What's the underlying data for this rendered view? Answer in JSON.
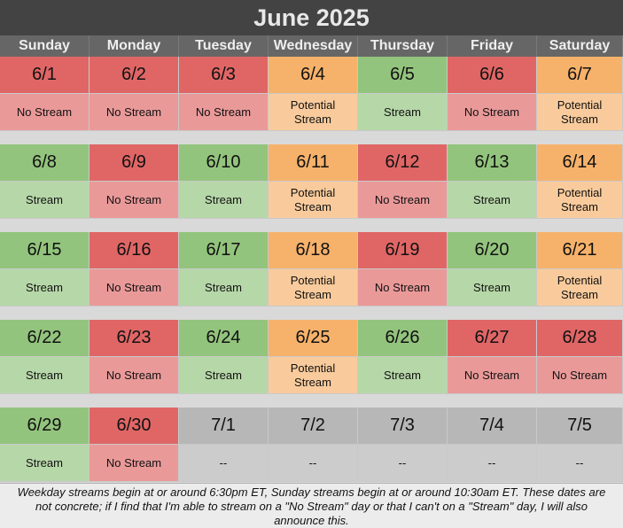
{
  "title": "June 2025",
  "days": [
    "Sunday",
    "Monday",
    "Tuesday",
    "Wednesday",
    "Thursday",
    "Friday",
    "Saturday"
  ],
  "colors": {
    "red_date": "#e06666",
    "red_status": "#ea9999",
    "orange_date": "#f6b26b",
    "orange_status": "#f9cb9c",
    "green_date": "#93c47d",
    "green_status": "#b6d7a8",
    "gray_date": "#b7b7b7",
    "gray_status": "#cccccc"
  },
  "weeks": [
    [
      {
        "date": "6/1",
        "status": "No Stream",
        "kind": "red"
      },
      {
        "date": "6/2",
        "status": "No Stream",
        "kind": "red"
      },
      {
        "date": "6/3",
        "status": "No Stream",
        "kind": "red"
      },
      {
        "date": "6/4",
        "status": "Potential\nStream",
        "kind": "orange"
      },
      {
        "date": "6/5",
        "status": "Stream",
        "kind": "green"
      },
      {
        "date": "6/6",
        "status": "No Stream",
        "kind": "red"
      },
      {
        "date": "6/7",
        "status": "Potential\nStream",
        "kind": "orange"
      }
    ],
    [
      {
        "date": "6/8",
        "status": "Stream",
        "kind": "green"
      },
      {
        "date": "6/9",
        "status": "No Stream",
        "kind": "red"
      },
      {
        "date": "6/10",
        "status": "Stream",
        "kind": "green"
      },
      {
        "date": "6/11",
        "status": "Potential\nStream",
        "kind": "orange"
      },
      {
        "date": "6/12",
        "status": "No Stream",
        "kind": "red"
      },
      {
        "date": "6/13",
        "status": "Stream",
        "kind": "green"
      },
      {
        "date": "6/14",
        "status": "Potential\nStream",
        "kind": "orange"
      }
    ],
    [
      {
        "date": "6/15",
        "status": "Stream",
        "kind": "green"
      },
      {
        "date": "6/16",
        "status": "No Stream",
        "kind": "red"
      },
      {
        "date": "6/17",
        "status": "Stream",
        "kind": "green"
      },
      {
        "date": "6/18",
        "status": "Potential\nStream",
        "kind": "orange"
      },
      {
        "date": "6/19",
        "status": "No Stream",
        "kind": "red"
      },
      {
        "date": "6/20",
        "status": "Stream",
        "kind": "green"
      },
      {
        "date": "6/21",
        "status": "Potential\nStream",
        "kind": "orange"
      }
    ],
    [
      {
        "date": "6/22",
        "status": "Stream",
        "kind": "green"
      },
      {
        "date": "6/23",
        "status": "No Stream",
        "kind": "red"
      },
      {
        "date": "6/24",
        "status": "Stream",
        "kind": "green"
      },
      {
        "date": "6/25",
        "status": "Potential\nStream",
        "kind": "orange"
      },
      {
        "date": "6/26",
        "status": "Stream",
        "kind": "green"
      },
      {
        "date": "6/27",
        "status": "No Stream",
        "kind": "red"
      },
      {
        "date": "6/28",
        "status": "No Stream",
        "kind": "red"
      }
    ],
    [
      {
        "date": "6/29",
        "status": "Stream",
        "kind": "green"
      },
      {
        "date": "6/30",
        "status": "No Stream",
        "kind": "red"
      },
      {
        "date": "7/1",
        "status": "--",
        "kind": "gray"
      },
      {
        "date": "7/2",
        "status": "--",
        "kind": "gray"
      },
      {
        "date": "7/3",
        "status": "--",
        "kind": "gray"
      },
      {
        "date": "7/4",
        "status": "--",
        "kind": "gray"
      },
      {
        "date": "7/5",
        "status": "--",
        "kind": "gray"
      }
    ]
  ],
  "footer": "Weekday streams begin at or around 6:30pm ET, Sunday streams begin at or around 10:30am ET. These dates are not concrete; if I find that I'm able to stream on a \"No Stream\" day or that I can't on a \"Stream\" day, I will also announce this."
}
